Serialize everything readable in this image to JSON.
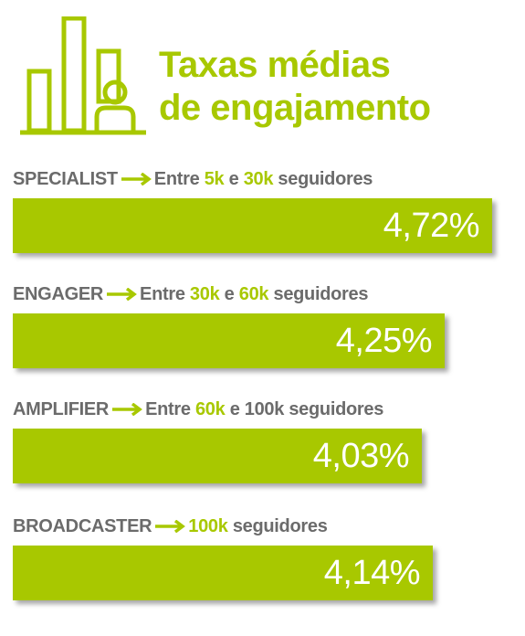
{
  "header": {
    "title_line1": "Taxas médias",
    "title_line2": "de engajamento",
    "icon": "bar-chart-person-icon"
  },
  "colors": {
    "accent": "#a8c800",
    "label": "#6b6b6b",
    "value_text": "#ffffff"
  },
  "categories": [
    {
      "name": "SPECIALIST",
      "parts": [
        {
          "t": "Entre ",
          "hl": false
        },
        {
          "t": "5k",
          "hl": true
        },
        {
          "t": " e ",
          "hl": false
        },
        {
          "t": "30k",
          "hl": true
        },
        {
          "t": " seguidores",
          "hl": false
        }
      ],
      "value_label": "4,72%"
    },
    {
      "name": "ENGAGER",
      "parts": [
        {
          "t": "Entre ",
          "hl": false
        },
        {
          "t": "30k",
          "hl": true
        },
        {
          "t": " e ",
          "hl": false
        },
        {
          "t": "60k",
          "hl": true
        },
        {
          "t": " seguidores",
          "hl": false
        }
      ],
      "value_label": "4,25%"
    },
    {
      "name": "AMPLIFIER",
      "parts": [
        {
          "t": "Entre ",
          "hl": false
        },
        {
          "t": "60k",
          "hl": true
        },
        {
          "t": " e 100k seguidores",
          "hl": false
        }
      ],
      "value_label": "4,03%"
    },
    {
      "name": "BROADCASTER",
      "parts": [
        {
          "t": "100k",
          "hl": true
        },
        {
          "t": " seguidores",
          "hl": false
        }
      ],
      "value_label": "4,14%"
    }
  ],
  "chart_data": {
    "type": "bar",
    "orientation": "horizontal",
    "title": "Taxas médias de engajamento",
    "categories": [
      "SPECIALIST",
      "ENGAGER",
      "AMPLIFIER",
      "BROADCASTER"
    ],
    "values": [
      4.72,
      4.25,
      4.03,
      4.14
    ],
    "unit": "%",
    "grid": false
  }
}
